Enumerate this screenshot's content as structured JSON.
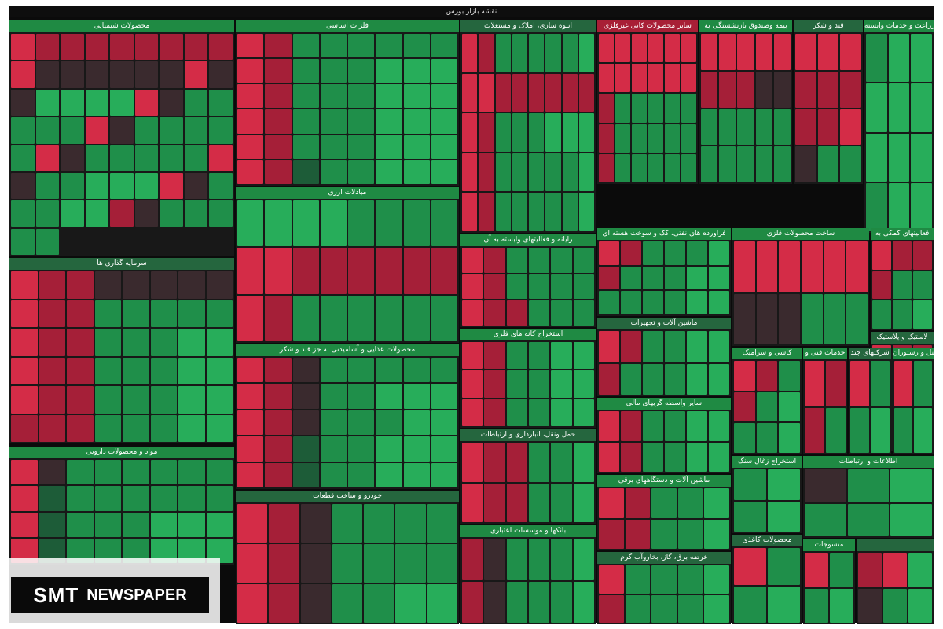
{
  "app": {
    "title": "نقشه بازار بورس"
  },
  "sectors": [
    {
      "name": "محصولات شیمیایی",
      "colors": [
        0,
        1,
        1,
        1,
        1,
        1,
        1,
        1,
        1,
        0,
        3,
        3,
        3,
        3,
        3,
        3,
        0,
        3,
        3,
        6,
        6,
        6,
        6,
        0,
        3,
        5,
        5,
        5,
        5,
        5,
        0,
        3,
        5,
        5,
        5,
        5,
        5,
        0,
        3,
        5,
        5,
        5,
        5,
        5,
        0,
        3,
        5,
        5,
        6,
        6,
        6,
        0,
        3,
        5,
        5,
        5,
        6,
        6,
        1,
        3,
        5,
        5,
        5,
        5,
        5
      ]
    },
    {
      "name": "فلزات اساسی",
      "colors": [
        0,
        1,
        5,
        5,
        5,
        5,
        5,
        5,
        0,
        1,
        5,
        5,
        5,
        6,
        6,
        6,
        0,
        1,
        5,
        5,
        5,
        6,
        6,
        6,
        0,
        1,
        5,
        5,
        5,
        6,
        6,
        6,
        0,
        1,
        5,
        5,
        5,
        6,
        6,
        6,
        0,
        1,
        4,
        5,
        5,
        6,
        6,
        6
      ]
    },
    {
      "name": "انبوه سازی، املاک و مستغلات",
      "colors": [
        0,
        1,
        5,
        5,
        5,
        5,
        5,
        6,
        0,
        0,
        1,
        1,
        1,
        1,
        1,
        1,
        0,
        1,
        5,
        5,
        5,
        6,
        6,
        6,
        0,
        1,
        5,
        5,
        5,
        5,
        5,
        6,
        0,
        1,
        5,
        5,
        5,
        5,
        5,
        6
      ]
    },
    {
      "name": "سایر محصولات کانی غیرفلزی",
      "colors": [
        0,
        0,
        0,
        0,
        0,
        0,
        0,
        0,
        0,
        0,
        0,
        0,
        1,
        5,
        5,
        5,
        5,
        5,
        1,
        5,
        5,
        5,
        5,
        5,
        1,
        5,
        5,
        5,
        5,
        5
      ]
    },
    {
      "name": "بیمه وصندوق بازنشستگی به",
      "colors": [
        0,
        0,
        0,
        0,
        0,
        1,
        1,
        1,
        3,
        3,
        5,
        5,
        5,
        5,
        5,
        5,
        5,
        5,
        5,
        5
      ]
    },
    {
      "name": "قند و شکر",
      "colors": [
        0,
        0,
        0,
        1,
        1,
        1,
        1,
        1,
        0,
        3,
        5,
        5
      ]
    },
    {
      "name": "زراعت و خدمات وابسته",
      "colors": [
        5,
        6,
        6,
        6,
        6,
        6,
        6,
        6,
        6,
        5,
        6,
        6
      ]
    },
    {
      "name": "مبادلات ارزی",
      "colors": [
        6,
        6,
        6,
        6,
        5,
        5,
        5,
        5,
        0,
        0,
        1,
        1,
        1,
        1,
        1,
        1,
        0,
        1,
        5,
        5,
        5,
        5,
        5,
        5
      ]
    },
    {
      "name": "سرمایه گذاری ها",
      "colors": [
        0,
        1,
        1,
        3,
        3,
        3,
        3,
        3,
        0,
        1,
        1,
        5,
        5,
        5,
        5,
        5,
        0,
        1,
        1,
        5,
        5,
        5,
        6,
        6,
        0,
        1,
        1,
        5,
        5,
        5,
        6,
        6,
        0,
        1,
        1,
        5,
        5,
        5,
        6,
        6,
        1,
        1,
        1,
        5,
        5,
        5,
        6,
        6
      ]
    },
    {
      "name": "مواد و محصولات دارویی",
      "colors": [
        0,
        3,
        5,
        5,
        5,
        5,
        5,
        5,
        0,
        4,
        5,
        5,
        5,
        5,
        5,
        5,
        0,
        4,
        5,
        5,
        5,
        6,
        6,
        6,
        0,
        4,
        5,
        5,
        5,
        6,
        6,
        6
      ]
    },
    {
      "name": "محصولات غذایی و آشامیدنی به جز قند و شکر",
      "colors": [
        0,
        1,
        3,
        5,
        5,
        5,
        5,
        5,
        0,
        1,
        3,
        5,
        5,
        6,
        6,
        6,
        0,
        1,
        3,
        5,
        5,
        5,
        6,
        6,
        0,
        1,
        4,
        5,
        5,
        6,
        6,
        6,
        0,
        1,
        4,
        5,
        5,
        6,
        6,
        6
      ]
    },
    {
      "name": "خودرو و ساخت قطعات",
      "colors": [
        0,
        1,
        3,
        5,
        5,
        5,
        5,
        0,
        1,
        3,
        5,
        5,
        5,
        5,
        0,
        1,
        3,
        5,
        5,
        6,
        6
      ]
    },
    {
      "name": "رایانه و فعالیتهای وابسته به آن",
      "colors": [
        0,
        1,
        5,
        5,
        5,
        5,
        0,
        1,
        5,
        5,
        5,
        5,
        0,
        1,
        1,
        5,
        5,
        5
      ]
    },
    {
      "name": "استخراج کانه های فلزی",
      "colors": [
        0,
        1,
        5,
        5,
        6,
        6,
        0,
        1,
        5,
        5,
        6,
        6,
        0,
        1,
        5,
        5,
        6,
        6
      ]
    },
    {
      "name": "حمل ونقل، انبارداری و ارتباطات",
      "colors": [
        0,
        1,
        1,
        5,
        5,
        6,
        0,
        1,
        1,
        5,
        5,
        6
      ]
    },
    {
      "name": "بانکها و موسسات اعتباری",
      "colors": [
        1,
        3,
        5,
        5,
        5,
        6,
        1,
        3,
        5,
        5,
        5,
        6
      ]
    },
    {
      "name": "فراورده های نفتی، کک و سوخت هسته ای",
      "colors": [
        0,
        1,
        5,
        5,
        5,
        6,
        1,
        5,
        5,
        5,
        6,
        6,
        5,
        5,
        5,
        5,
        6,
        6
      ]
    },
    {
      "name": "ماشین آلات و تجهیزات",
      "colors": [
        0,
        1,
        5,
        5,
        6,
        6,
        1,
        5,
        5,
        5,
        6,
        6
      ]
    },
    {
      "name": "سایر واسطه گریهای مالی",
      "colors": [
        0,
        1,
        5,
        5,
        6,
        6,
        0,
        1,
        5,
        5,
        6,
        6
      ]
    },
    {
      "name": "ماشین آلات و دستگاههای برقی",
      "colors": [
        0,
        1,
        5,
        5,
        6,
        1,
        1,
        5,
        5,
        6
      ]
    },
    {
      "name": "عرضه برق، گاز، بخاروآب گرم",
      "colors": [
        0,
        5,
        5,
        5,
        6,
        1,
        5,
        5,
        5,
        6
      ]
    },
    {
      "name": "ساخت محصولات فلزی",
      "colors": [
        0,
        0,
        0,
        0,
        0,
        0,
        3,
        3,
        3,
        5,
        5,
        5
      ]
    },
    {
      "name": "فعالیتهای کمکی به",
      "colors": [
        0,
        1,
        1,
        1,
        5,
        5,
        5,
        5,
        6
      ]
    },
    {
      "name": "لاستیک و پلاستیک",
      "colors": [
        0,
        1,
        1,
        1,
        5,
        5,
        5,
        6,
        6
      ]
    },
    {
      "name": "کاشی و سرامیک",
      "colors": [
        0,
        1,
        5,
        1,
        5,
        6,
        5,
        5,
        6
      ]
    },
    {
      "name": "خدمات فنی و",
      "colors": [
        0,
        1,
        1,
        5
      ]
    },
    {
      "name": "شرکتهای چند",
      "colors": [
        0,
        5,
        5,
        6
      ]
    },
    {
      "name": "هتل و رستوران",
      "colors": [
        0,
        5,
        5,
        6
      ]
    },
    {
      "name": "استخراج زغال سنگ",
      "colors": [
        5,
        6,
        5,
        6
      ]
    },
    {
      "name": "محصولات کاغذی",
      "colors": [
        0,
        5,
        5,
        6
      ]
    },
    {
      "name": "اطلاعات و ارتباطات",
      "colors": [
        3,
        5,
        6,
        5,
        5,
        6
      ]
    },
    {
      "name": "منسوجات",
      "colors": [
        0,
        5,
        5,
        6
      ]
    },
    {
      "name": "",
      "colors": [
        1,
        0,
        6,
        3,
        5,
        6
      ]
    }
  ],
  "watermark": {
    "brand_main": "SMT",
    "brand_sub": "NEWSPAPER"
  }
}
